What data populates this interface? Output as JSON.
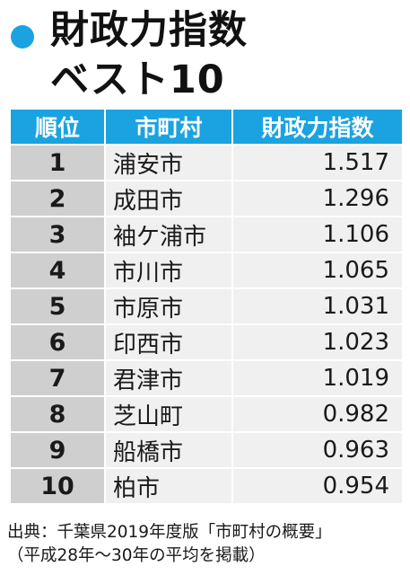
{
  "title": {
    "line1": "財政力指数",
    "line2": "ベスト10",
    "bullet_color": "#1aa3e0"
  },
  "table": {
    "headers": [
      "順位",
      "市町村",
      "財政力指数"
    ],
    "rows": [
      {
        "rank": "1",
        "city": "浦安市",
        "index": "1.517"
      },
      {
        "rank": "2",
        "city": "成田市",
        "index": "1.296"
      },
      {
        "rank": "3",
        "city": "袖ケ浦市",
        "index": "1.106"
      },
      {
        "rank": "4",
        "city": "市川市",
        "index": "1.065"
      },
      {
        "rank": "5",
        "city": "市原市",
        "index": "1.031"
      },
      {
        "rank": "6",
        "city": "印西市",
        "index": "1.023"
      },
      {
        "rank": "7",
        "city": "君津市",
        "index": "1.019"
      },
      {
        "rank": "8",
        "city": "芝山町",
        "index": "0.982"
      },
      {
        "rank": "9",
        "city": "船橋市",
        "index": "0.963"
      },
      {
        "rank": "10",
        "city": "柏市",
        "index": "0.954"
      }
    ],
    "header_color": "#1aa3e0",
    "rank_cell_color": "#cfcfcf",
    "data_cell_color": "#f0f0f0"
  },
  "source": {
    "line1": "出典：千葉県2019年度版「市町村の概要」",
    "line2": "（平成28年～30年の平均を掲載）"
  }
}
